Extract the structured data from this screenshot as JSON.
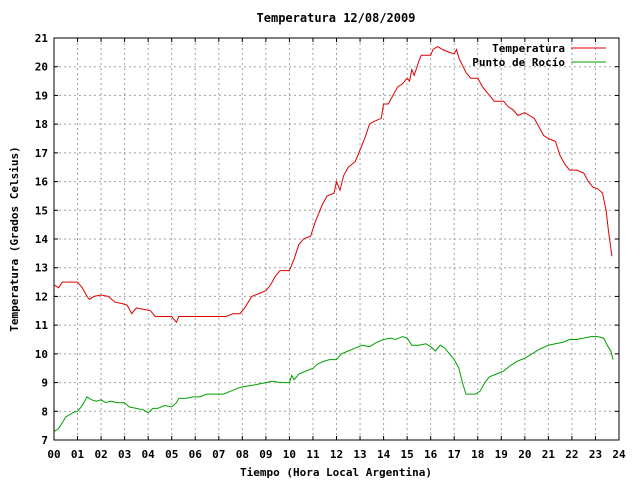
{
  "chart_data": {
    "type": "line",
    "title": "Temperatura 12/08/2009",
    "xlabel": "Tiempo (Hora Local Argentina)",
    "ylabel": "Temperatura (Grados Celsius)",
    "xlim": [
      0,
      24
    ],
    "ylim": [
      7,
      21
    ],
    "grid": true,
    "legend_position": "top-right",
    "x_ticks": [
      "00",
      "01",
      "02",
      "03",
      "04",
      "05",
      "06",
      "07",
      "08",
      "09",
      "10",
      "11",
      "12",
      "13",
      "14",
      "15",
      "16",
      "17",
      "18",
      "19",
      "20",
      "21",
      "22",
      "23",
      "24"
    ],
    "y_ticks": [
      "7",
      "8",
      "9",
      "10",
      "11",
      "12",
      "13",
      "14",
      "15",
      "16",
      "17",
      "18",
      "19",
      "20",
      "21"
    ],
    "series": [
      {
        "name": "Temperatura",
        "color": "#e00000",
        "points": [
          [
            0.0,
            12.4
          ],
          [
            0.2,
            12.3
          ],
          [
            0.35,
            12.5
          ],
          [
            0.6,
            12.5
          ],
          [
            1.0,
            12.5
          ],
          [
            1.2,
            12.3
          ],
          [
            1.4,
            12.0
          ],
          [
            1.5,
            11.9
          ],
          [
            1.7,
            12.0
          ],
          [
            2.0,
            12.05
          ],
          [
            2.3,
            12.0
          ],
          [
            2.6,
            11.8
          ],
          [
            2.9,
            11.75
          ],
          [
            3.1,
            11.7
          ],
          [
            3.3,
            11.4
          ],
          [
            3.5,
            11.6
          ],
          [
            3.8,
            11.55
          ],
          [
            4.1,
            11.5
          ],
          [
            4.3,
            11.3
          ],
          [
            4.6,
            11.3
          ],
          [
            5.0,
            11.3
          ],
          [
            5.2,
            11.1
          ],
          [
            5.3,
            11.3
          ],
          [
            5.6,
            11.3
          ],
          [
            6.0,
            11.3
          ],
          [
            6.5,
            11.3
          ],
          [
            7.0,
            11.3
          ],
          [
            7.3,
            11.3
          ],
          [
            7.6,
            11.4
          ],
          [
            7.9,
            11.4
          ],
          [
            8.1,
            11.6
          ],
          [
            8.4,
            12.0
          ],
          [
            8.7,
            12.1
          ],
          [
            9.0,
            12.2
          ],
          [
            9.2,
            12.4
          ],
          [
            9.4,
            12.7
          ],
          [
            9.6,
            12.9
          ],
          [
            10.0,
            12.9
          ],
          [
            10.2,
            13.3
          ],
          [
            10.4,
            13.8
          ],
          [
            10.6,
            14.0
          ],
          [
            10.9,
            14.1
          ],
          [
            11.1,
            14.6
          ],
          [
            11.4,
            15.2
          ],
          [
            11.6,
            15.5
          ],
          [
            11.9,
            15.6
          ],
          [
            12.0,
            16.0
          ],
          [
            12.15,
            15.7
          ],
          [
            12.3,
            16.2
          ],
          [
            12.5,
            16.5
          ],
          [
            12.8,
            16.7
          ],
          [
            13.0,
            17.1
          ],
          [
            13.2,
            17.5
          ],
          [
            13.4,
            18.0
          ],
          [
            13.6,
            18.1
          ],
          [
            13.9,
            18.2
          ],
          [
            14.0,
            18.7
          ],
          [
            14.2,
            18.7
          ],
          [
            14.4,
            19.0
          ],
          [
            14.6,
            19.3
          ],
          [
            14.8,
            19.4
          ],
          [
            15.0,
            19.6
          ],
          [
            15.1,
            19.5
          ],
          [
            15.2,
            19.9
          ],
          [
            15.3,
            19.7
          ],
          [
            15.5,
            20.2
          ],
          [
            15.6,
            20.4
          ],
          [
            16.0,
            20.4
          ],
          [
            16.1,
            20.6
          ],
          [
            16.3,
            20.7
          ],
          [
            16.5,
            20.6
          ],
          [
            16.8,
            20.5
          ],
          [
            17.0,
            20.45
          ],
          [
            17.1,
            20.6
          ],
          [
            17.2,
            20.3
          ],
          [
            17.5,
            19.8
          ],
          [
            17.7,
            19.6
          ],
          [
            18.0,
            19.6
          ],
          [
            18.2,
            19.3
          ],
          [
            18.5,
            19.0
          ],
          [
            18.7,
            18.8
          ],
          [
            19.1,
            18.8
          ],
          [
            19.3,
            18.6
          ],
          [
            19.5,
            18.5
          ],
          [
            19.7,
            18.3
          ],
          [
            20.0,
            18.4
          ],
          [
            20.2,
            18.3
          ],
          [
            20.4,
            18.2
          ],
          [
            20.6,
            17.9
          ],
          [
            20.8,
            17.6
          ],
          [
            21.0,
            17.5
          ],
          [
            21.3,
            17.4
          ],
          [
            21.5,
            16.9
          ],
          [
            21.7,
            16.6
          ],
          [
            21.9,
            16.4
          ],
          [
            22.2,
            16.4
          ],
          [
            22.5,
            16.3
          ],
          [
            22.7,
            16.0
          ],
          [
            22.9,
            15.8
          ],
          [
            23.1,
            15.75
          ],
          [
            23.3,
            15.6
          ],
          [
            23.45,
            15.0
          ],
          [
            23.55,
            14.3
          ],
          [
            23.7,
            13.4
          ]
        ]
      },
      {
        "name": "Punto de Rocío",
        "color": "#00a000",
        "points": [
          [
            0.0,
            7.3
          ],
          [
            0.2,
            7.4
          ],
          [
            0.35,
            7.6
          ],
          [
            0.5,
            7.8
          ],
          [
            0.8,
            7.95
          ],
          [
            1.0,
            8.0
          ],
          [
            1.2,
            8.2
          ],
          [
            1.4,
            8.5
          ],
          [
            1.6,
            8.4
          ],
          [
            1.8,
            8.35
          ],
          [
            2.0,
            8.4
          ],
          [
            2.2,
            8.3
          ],
          [
            2.4,
            8.35
          ],
          [
            2.7,
            8.3
          ],
          [
            3.0,
            8.3
          ],
          [
            3.2,
            8.15
          ],
          [
            3.5,
            8.1
          ],
          [
            3.8,
            8.05
          ],
          [
            4.0,
            7.95
          ],
          [
            4.2,
            8.1
          ],
          [
            4.4,
            8.1
          ],
          [
            4.7,
            8.2
          ],
          [
            5.0,
            8.15
          ],
          [
            5.2,
            8.3
          ],
          [
            5.3,
            8.45
          ],
          [
            5.6,
            8.45
          ],
          [
            5.9,
            8.5
          ],
          [
            6.2,
            8.5
          ],
          [
            6.5,
            8.6
          ],
          [
            6.9,
            8.6
          ],
          [
            7.2,
            8.6
          ],
          [
            7.5,
            8.7
          ],
          [
            7.8,
            8.8
          ],
          [
            8.0,
            8.85
          ],
          [
            8.4,
            8.9
          ],
          [
            8.7,
            8.95
          ],
          [
            9.0,
            9.0
          ],
          [
            9.3,
            9.05
          ],
          [
            9.6,
            9.0
          ],
          [
            10.0,
            9.0
          ],
          [
            10.1,
            9.25
          ],
          [
            10.2,
            9.1
          ],
          [
            10.4,
            9.3
          ],
          [
            10.7,
            9.4
          ],
          [
            11.0,
            9.5
          ],
          [
            11.2,
            9.65
          ],
          [
            11.5,
            9.75
          ],
          [
            11.7,
            9.8
          ],
          [
            12.0,
            9.8
          ],
          [
            12.2,
            10.0
          ],
          [
            12.5,
            10.1
          ],
          [
            12.8,
            10.2
          ],
          [
            13.1,
            10.3
          ],
          [
            13.4,
            10.25
          ],
          [
            13.7,
            10.4
          ],
          [
            14.0,
            10.5
          ],
          [
            14.3,
            10.55
          ],
          [
            14.5,
            10.5
          ],
          [
            14.8,
            10.6
          ],
          [
            15.0,
            10.55
          ],
          [
            15.2,
            10.3
          ],
          [
            15.5,
            10.3
          ],
          [
            15.8,
            10.35
          ],
          [
            16.0,
            10.25
          ],
          [
            16.2,
            10.1
          ],
          [
            16.4,
            10.3
          ],
          [
            16.6,
            10.2
          ],
          [
            16.8,
            10.0
          ],
          [
            17.0,
            9.8
          ],
          [
            17.2,
            9.5
          ],
          [
            17.35,
            9.0
          ],
          [
            17.5,
            8.6
          ],
          [
            17.7,
            8.6
          ],
          [
            17.9,
            8.6
          ],
          [
            18.1,
            8.7
          ],
          [
            18.3,
            9.0
          ],
          [
            18.5,
            9.2
          ],
          [
            18.8,
            9.3
          ],
          [
            19.1,
            9.4
          ],
          [
            19.4,
            9.6
          ],
          [
            19.7,
            9.75
          ],
          [
            20.0,
            9.85
          ],
          [
            20.3,
            10.0
          ],
          [
            20.6,
            10.15
          ],
          [
            21.0,
            10.3
          ],
          [
            21.3,
            10.35
          ],
          [
            21.6,
            10.4
          ],
          [
            21.9,
            10.5
          ],
          [
            22.2,
            10.5
          ],
          [
            22.5,
            10.55
          ],
          [
            22.8,
            10.6
          ],
          [
            23.1,
            10.6
          ],
          [
            23.35,
            10.55
          ],
          [
            23.5,
            10.3
          ],
          [
            23.65,
            10.1
          ],
          [
            23.75,
            9.8
          ]
        ]
      }
    ]
  }
}
